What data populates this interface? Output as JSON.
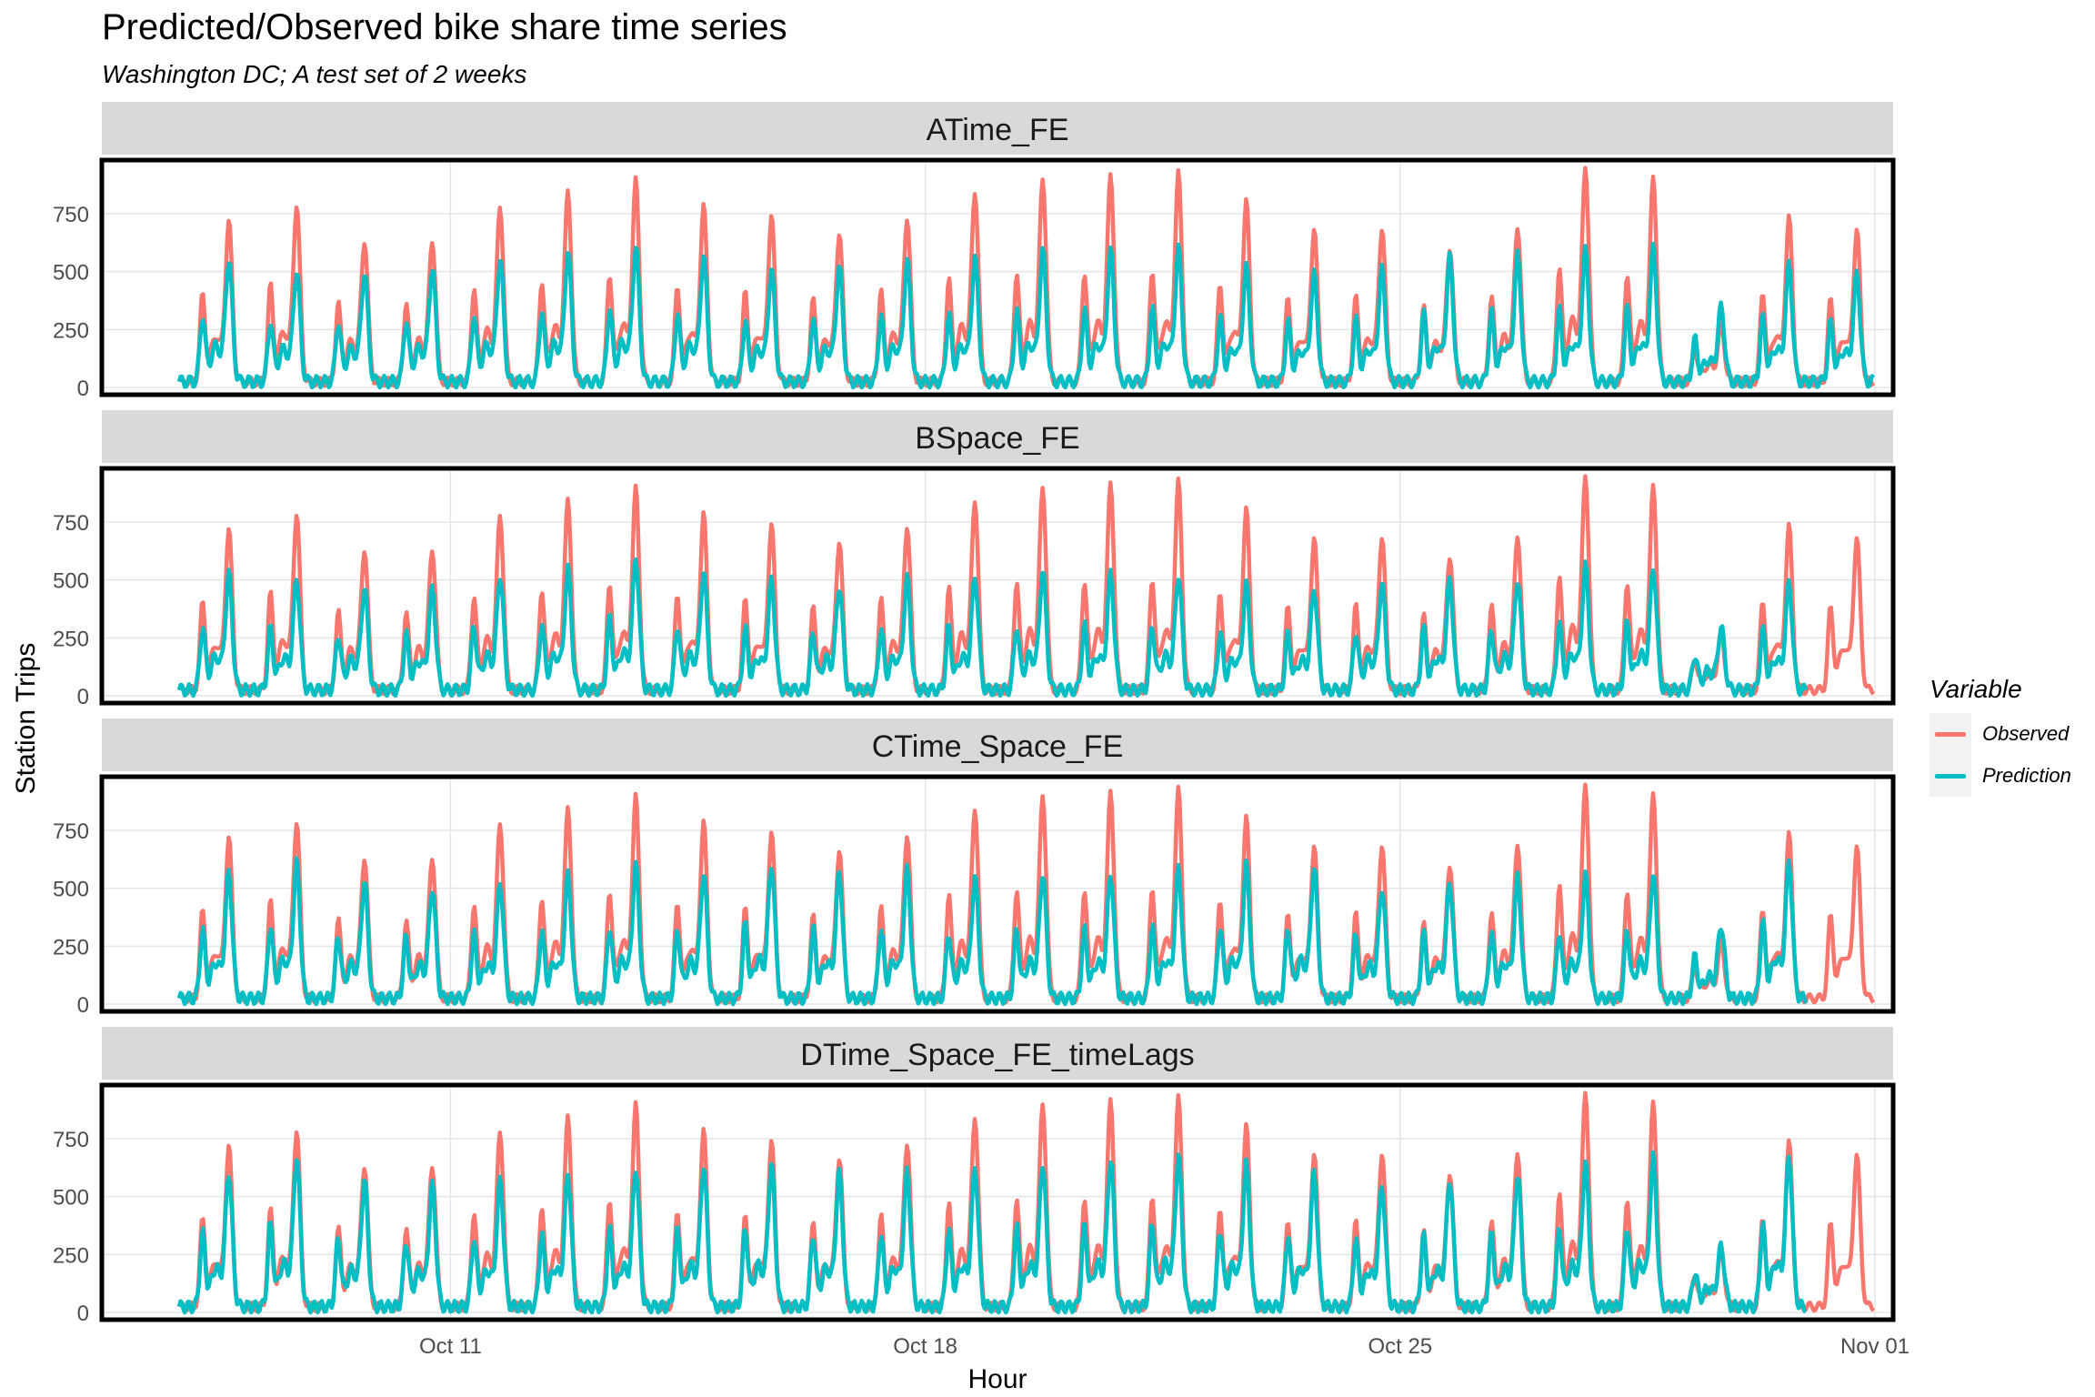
{
  "chart_data": {
    "type": "line",
    "title": "Predicted/Observed bike share time series",
    "subtitle": "Washington DC; A test set of 2 weeks",
    "xlabel": "Hour",
    "ylabel": "Station Trips",
    "x_ticks": [
      "Oct 11",
      "Oct 18",
      "Oct 25",
      "Nov 01"
    ],
    "y_ticks": [
      0,
      250,
      500,
      750
    ],
    "ylim": [
      0,
      950
    ],
    "grid": true,
    "legend": {
      "title": "Variable",
      "position": "right",
      "entries": [
        {
          "name": "Observed",
          "color": "#f8766d"
        },
        {
          "name": "Prediction",
          "color": "#00bfc4"
        }
      ]
    },
    "x_range": [
      "Oct 07",
      "Nov 01"
    ],
    "facets": [
      "ATime_FE",
      "BSpace_FE",
      "CTime_Space_FE",
      "DTime_Space_FE_timeLags"
    ],
    "daily_peaks": {
      "dates": [
        "Oct 07",
        "Oct 08",
        "Oct 09",
        "Oct 10",
        "Oct 11",
        "Oct 12",
        "Oct 13",
        "Oct 14",
        "Oct 15",
        "Oct 16",
        "Oct 17",
        "Oct 18",
        "Oct 19",
        "Oct 20",
        "Oct 21",
        "Oct 22",
        "Oct 23",
        "Oct 24",
        "Oct 25",
        "Oct 26",
        "Oct 27",
        "Oct 28",
        "Oct 29",
        "Oct 30",
        "Oct 31"
      ],
      "observed": [
        710,
        780,
        630,
        630,
        770,
        830,
        880,
        770,
        730,
        660,
        730,
        840,
        890,
        900,
        910,
        790,
        670,
        680,
        600,
        690,
        940,
        890,
        260,
        720,
        670
      ],
      "prediction": [
        {
          "facet": "ATime_FE",
          "values": [
            550,
            500,
            490,
            510,
            550,
            580,
            600,
            560,
            500,
            510,
            540,
            550,
            580,
            580,
            590,
            510,
            480,
            500,
            550,
            560,
            580,
            590,
            340,
            520,
            480
          ]
        },
        {
          "facet": "BSpace_FE",
          "values": [
            520,
            500,
            460,
            450,
            520,
            540,
            590,
            530,
            490,
            470,
            500,
            510,
            530,
            520,
            520,
            470,
            460,
            480,
            490,
            500,
            550,
            550,
            290,
            480,
            null
          ]
        },
        {
          "facet": "CTime_Space_FE",
          "values": [
            560,
            600,
            520,
            500,
            520,
            550,
            590,
            560,
            600,
            560,
            570,
            540,
            560,
            560,
            580,
            590,
            580,
            500,
            520,
            540,
            550,
            560,
            340,
            610,
            null
          ]
        },
        {
          "facet": "DTime_Space_FE_timeLags",
          "values": [
            600,
            670,
            560,
            540,
            560,
            590,
            620,
            630,
            630,
            590,
            600,
            620,
            640,
            660,
            670,
            630,
            590,
            540,
            570,
            590,
            640,
            660,
            280,
            670,
            null
          ]
        }
      ]
    }
  }
}
